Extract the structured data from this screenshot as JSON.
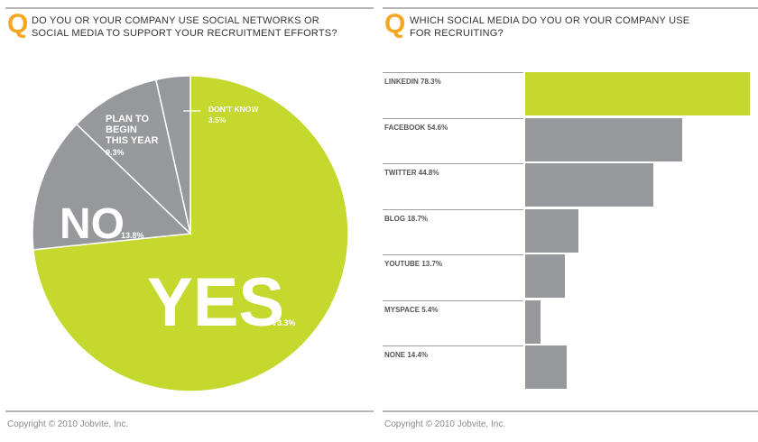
{
  "colors": {
    "accent_orange": "#f5a623",
    "yes_green": "#c4d82e",
    "gray": "#97989b",
    "rule": "#b5b5b5"
  },
  "left": {
    "q": "Q",
    "question": "DO YOU OR YOUR COMPANY USE SOCIAL NETWORKS OR\nSOCIAL MEDIA TO SUPPORT YOUR RECRUITMENT EFFORTS?",
    "copyright": "Copyright © 2010 Jobvite, Inc."
  },
  "right": {
    "q": "Q",
    "question": "WHICH SOCIAL MEDIA DO YOU OR YOUR COMPANY USE\nFOR RECRUITING?",
    "copyright": "Copyright © 2010 Jobvite, Inc."
  },
  "chart_data": [
    {
      "type": "pie",
      "slices": [
        {
          "label": "YES",
          "value": 73.3,
          "value_label": "73.3%",
          "color": "#c4d82e"
        },
        {
          "label": "NO",
          "value": 13.8,
          "value_label": "13.8%",
          "color": "#97989b"
        },
        {
          "label": "PLAN TO\nBEGIN\nTHIS YEAR",
          "value": 9.3,
          "value_label": "9.3%",
          "color": "#97989b"
        },
        {
          "label": "DON'T KNOW",
          "value": 3.5,
          "value_label": "3.5%",
          "color": "#97989b"
        }
      ]
    },
    {
      "type": "bar",
      "orientation": "horizontal",
      "categories": [
        "LINKEDIN",
        "FACEBOOK",
        "TWITTER",
        "BLOG",
        "YOUTUBE",
        "MYSPACE",
        "NONE"
      ],
      "values": [
        78.3,
        54.6,
        44.8,
        18.7,
        13.7,
        5.4,
        14.4
      ],
      "labels": [
        "LINKEDIN 78.3%",
        "FACEBOOK 54.6%",
        "TWITTER 44.8%",
        "BLOG 18.7%",
        "YOUTUBE 13.7%",
        "MYSPACE 5.4%",
        "NONE 14.4%"
      ],
      "colors": [
        "#c4d82e",
        "#97989b",
        "#97989b",
        "#97989b",
        "#97989b",
        "#97989b",
        "#97989b"
      ]
    }
  ]
}
